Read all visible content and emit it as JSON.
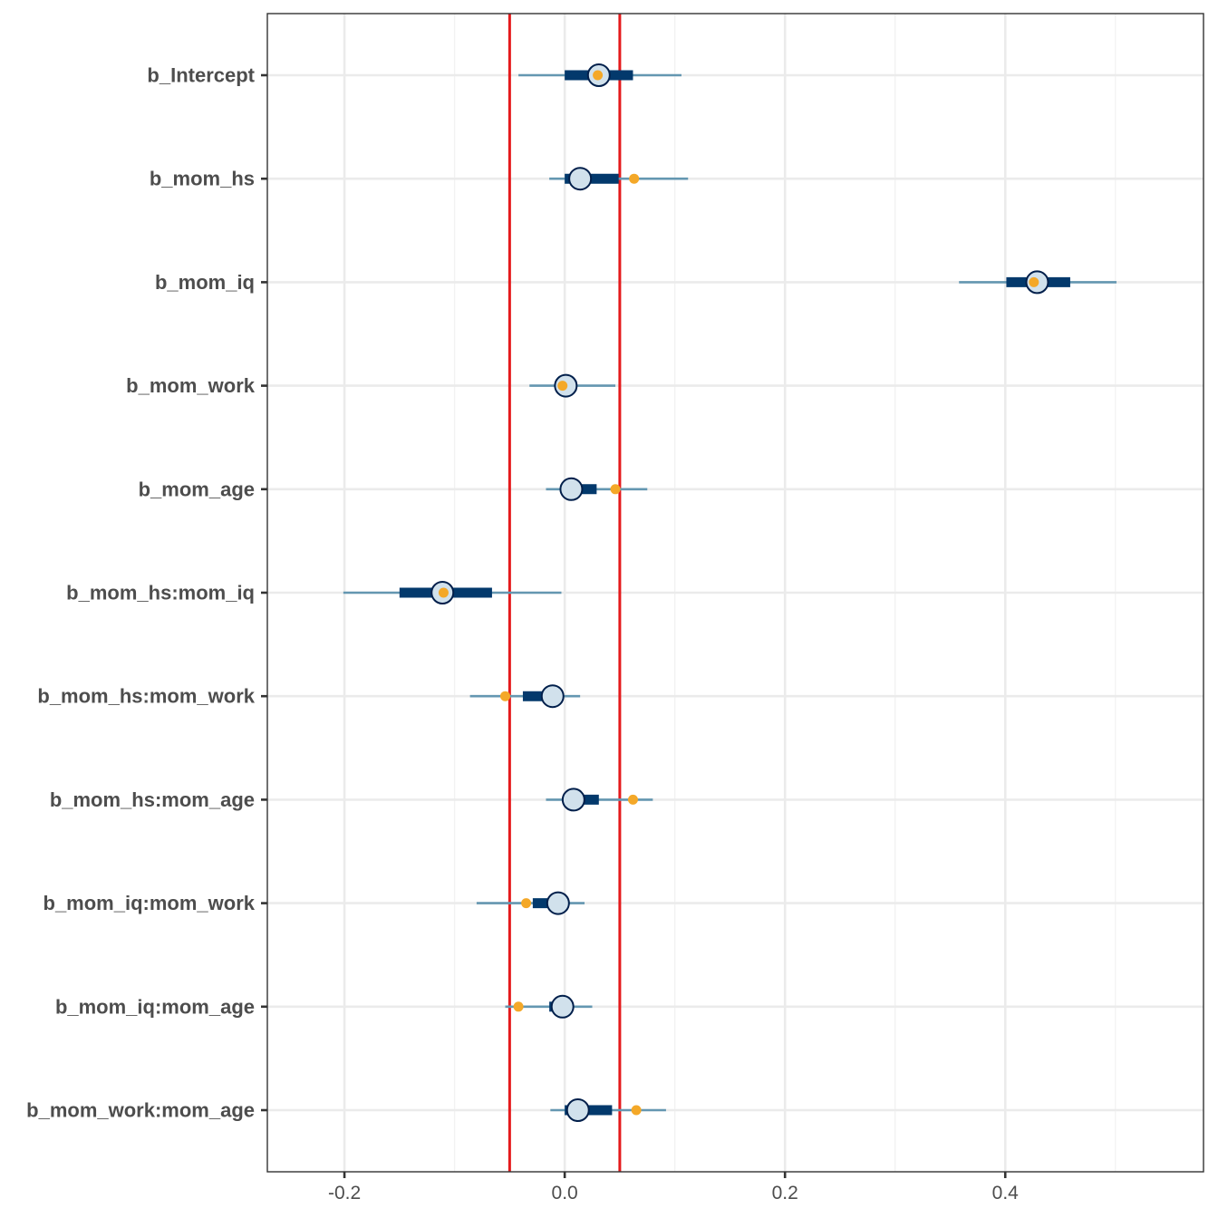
{
  "chart_data": {
    "type": "interval",
    "title": "",
    "xlabel": "",
    "ylabel": "",
    "xlim": [
      -0.27,
      0.58
    ],
    "x_ticks": [
      -0.2,
      0.0,
      0.2,
      0.4
    ],
    "x_tick_labels": [
      "-0.2",
      "0.0",
      "0.2",
      "0.4"
    ],
    "grid": true,
    "reference_lines": [
      -0.05,
      0.05
    ],
    "parameters": [
      {
        "label": "b_Intercept",
        "median": 0.031,
        "inner": [
          0.0,
          0.062
        ],
        "outer": [
          -0.042,
          0.106
        ],
        "marker": 0.03
      },
      {
        "label": "b_mom_hs",
        "median": 0.014,
        "inner": [
          0.0,
          0.049
        ],
        "outer": [
          -0.014,
          0.112
        ],
        "marker": 0.063
      },
      {
        "label": "b_mom_iq",
        "median": 0.429,
        "inner": [
          0.401,
          0.459
        ],
        "outer": [
          0.358,
          0.501
        ],
        "marker": 0.426
      },
      {
        "label": "b_mom_work",
        "median": 0.001,
        "inner": [
          -0.008,
          0.011
        ],
        "outer": [
          -0.032,
          0.046
        ],
        "marker": -0.002
      },
      {
        "label": "b_mom_age",
        "median": 0.006,
        "inner": [
          0.0,
          0.029
        ],
        "outer": [
          -0.017,
          0.075
        ],
        "marker": 0.046
      },
      {
        "label": "b_mom_hs:mom_iq",
        "median": -0.111,
        "inner": [
          -0.15,
          -0.066
        ],
        "outer": [
          -0.201,
          -0.003
        ],
        "marker": -0.11
      },
      {
        "label": "b_mom_hs:mom_work",
        "median": -0.011,
        "inner": [
          -0.038,
          -0.012
        ],
        "outer": [
          -0.086,
          0.014
        ],
        "marker": -0.054
      },
      {
        "label": "b_mom_hs:mom_age",
        "median": 0.008,
        "inner": [
          0.0,
          0.031
        ],
        "outer": [
          -0.017,
          0.08
        ],
        "marker": 0.062
      },
      {
        "label": "b_mom_iq:mom_work",
        "median": -0.006,
        "inner": [
          -0.029,
          -0.006
        ],
        "outer": [
          -0.08,
          0.018
        ],
        "marker": -0.035
      },
      {
        "label": "b_mom_iq:mom_age",
        "median": -0.002,
        "inner": [
          -0.014,
          -0.002
        ],
        "outer": [
          -0.054,
          0.025
        ],
        "marker": -0.042
      },
      {
        "label": "b_mom_work:mom_age",
        "median": 0.012,
        "inner": [
          0.0,
          0.043
        ],
        "outer": [
          -0.013,
          0.092
        ],
        "marker": 0.065
      }
    ],
    "colors": {
      "outer_line": "#6497b1",
      "inner_line": "#03396c",
      "point_fill": "#d1e1ec",
      "point_stroke": "#011f4b",
      "marker": "#f4a828",
      "reference_line": "#e41a1c",
      "grid_major": "#ebebeb",
      "grid_minor": "#f2f2f2",
      "panel_border": "#333333",
      "text": "#4d4d4d"
    }
  }
}
